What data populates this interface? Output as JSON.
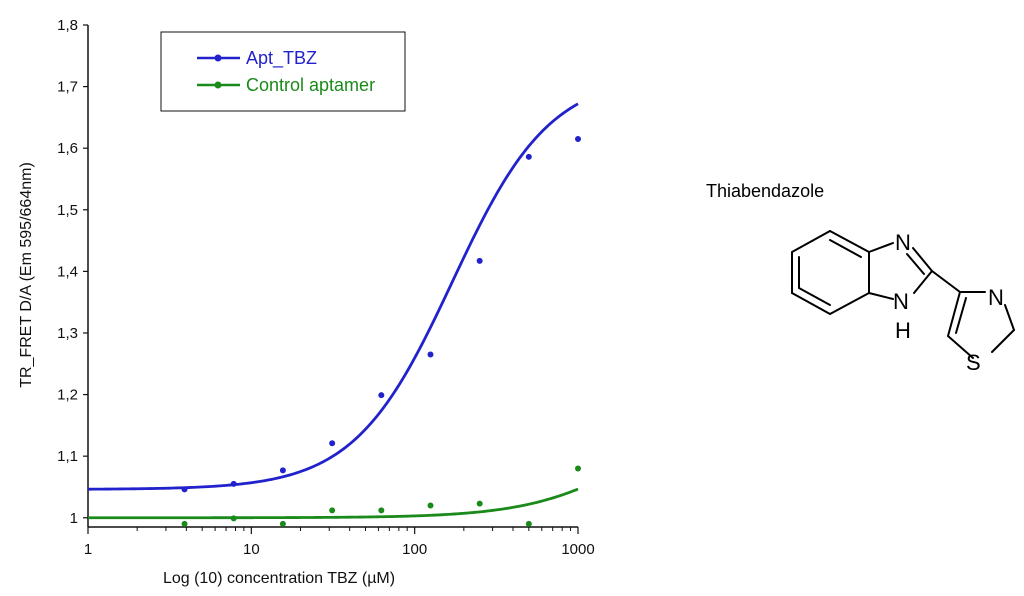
{
  "chart_data": {
    "type": "scatter",
    "xlabel": "Log (10) concentration TBZ (µM)",
    "ylabel": "TR_FRET D/A (Em 595/664nm)",
    "xscale": "log",
    "xlim": [
      1,
      1000
    ],
    "ylim": [
      0.985,
      1.8
    ],
    "x_ticks": [
      1,
      10,
      100,
      1000
    ],
    "x_tick_labels": [
      "1",
      "10",
      "100",
      "1000"
    ],
    "y_ticks": [
      1,
      1.1,
      1.2,
      1.3,
      1.4,
      1.5,
      1.6,
      1.7,
      1.8
    ],
    "y_tick_labels": [
      "1",
      "1,1",
      "1,2",
      "1,3",
      "1,4",
      "1,5",
      "1,6",
      "1,7",
      "1,8"
    ],
    "grid": false,
    "legend_position": "top-left",
    "series": [
      {
        "name": "Apt_TBZ",
        "color": "#2222cc",
        "points": [
          {
            "x": 3.9,
            "y": 1.046
          },
          {
            "x": 7.8,
            "y": 1.055
          },
          {
            "x": 15.6,
            "y": 1.077
          },
          {
            "x": 31.25,
            "y": 1.121
          },
          {
            "x": 62.5,
            "y": 1.199
          },
          {
            "x": 125,
            "y": 1.265
          },
          {
            "x": 250,
            "y": 1.417
          },
          {
            "x": 500,
            "y": 1.586
          },
          {
            "x": 1000,
            "y": 1.615
          }
        ],
        "fit": {
          "bottom": 1.046,
          "top": 1.72,
          "ec50": 170,
          "hill": 1.45
        }
      },
      {
        "name": "Control aptamer",
        "color": "#1a8a1a",
        "points": [
          {
            "x": 3.9,
            "y": 0.99
          },
          {
            "x": 7.8,
            "y": 0.999
          },
          {
            "x": 15.6,
            "y": 0.99
          },
          {
            "x": 31.25,
            "y": 1.012
          },
          {
            "x": 62.5,
            "y": 1.012
          },
          {
            "x": 125,
            "y": 1.02
          },
          {
            "x": 250,
            "y": 1.023
          },
          {
            "x": 500,
            "y": 0.99
          },
          {
            "x": 1000,
            "y": 1.08
          }
        ],
        "fit": {
          "bottom": 1.0,
          "top": 1.2,
          "ec50": 2500,
          "hill": 1.3
        }
      }
    ]
  },
  "molecule": {
    "name": "Thiabendazole",
    "atoms": {
      "n_top": "N",
      "nh_n": "N",
      "nh_h": "H",
      "n_thiazole": "N",
      "s_thiazole": "S"
    }
  }
}
